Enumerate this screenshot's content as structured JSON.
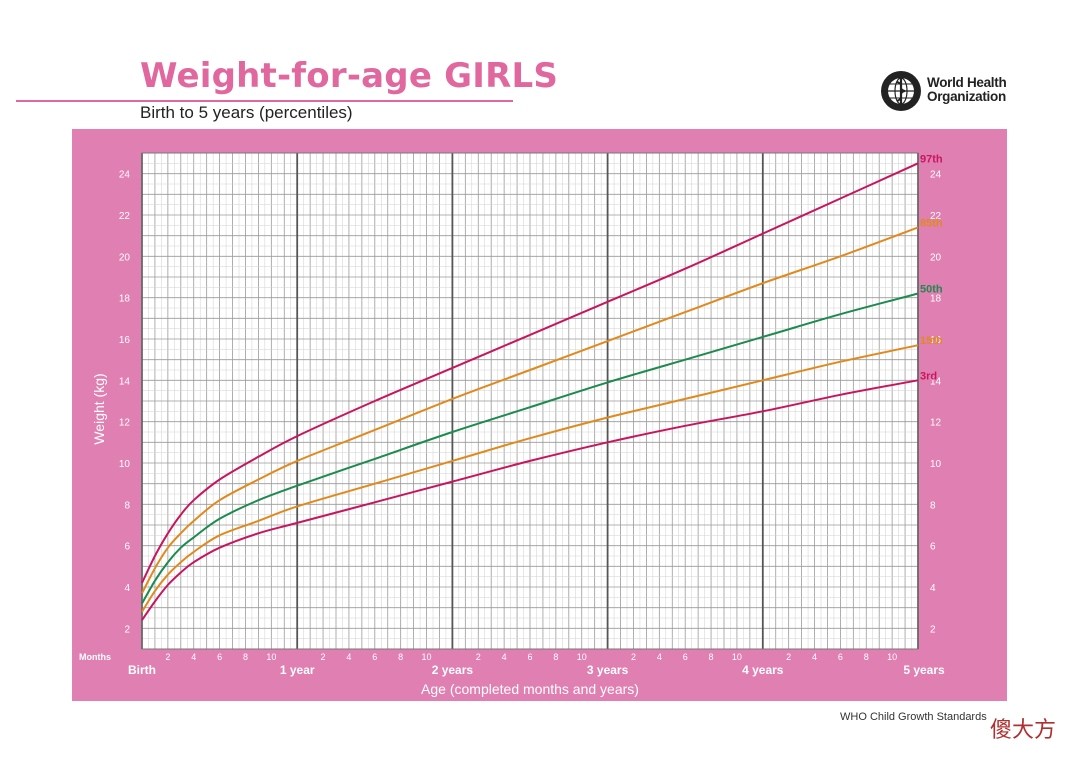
{
  "header": {
    "title": "Weight-for-age GIRLS",
    "subtitle": "Birth to 5 years (percentiles)"
  },
  "logo": {
    "icon": "who-emblem-icon",
    "line1": "World Health",
    "line2": "Organization"
  },
  "footer": {
    "source": "WHO Child Growth Standards",
    "watermark": "傻大方"
  },
  "colors": {
    "panel": "#e07fb2",
    "title": "#e0689f",
    "p97": "#c8155e",
    "p85": "#e08a1e",
    "p50": "#1d8a4e",
    "p15": "#e08a1e",
    "p3": "#c8155e"
  },
  "chart_data": {
    "type": "line",
    "xlabel": "Age (completed months and years)",
    "ylabel": "Weight (kg)",
    "xlim": [
      0,
      60
    ],
    "ylim": [
      1,
      25
    ],
    "grid": true,
    "months_label": "Months",
    "y_ticks": [
      2,
      4,
      6,
      8,
      10,
      12,
      14,
      16,
      18,
      20,
      22,
      24
    ],
    "month_tick_labels": [
      "2",
      "4",
      "6",
      "8",
      "10"
    ],
    "year_labels": [
      {
        "month": 0,
        "label": "Birth"
      },
      {
        "month": 12,
        "label": "1 year"
      },
      {
        "month": 24,
        "label": "2 years"
      },
      {
        "month": 36,
        "label": "3 years"
      },
      {
        "month": 48,
        "label": "4 years"
      },
      {
        "month": 60,
        "label": "5 years"
      }
    ],
    "x": [
      0,
      1,
      2,
      3,
      4,
      6,
      9,
      12,
      18,
      24,
      30,
      36,
      42,
      48,
      54,
      60
    ],
    "series": [
      {
        "name": "97th",
        "color_key": "p97",
        "values": [
          4.2,
          5.5,
          6.6,
          7.5,
          8.2,
          9.2,
          10.3,
          11.3,
          13.0,
          14.6,
          16.2,
          17.8,
          19.4,
          21.1,
          22.8,
          24.5
        ]
      },
      {
        "name": "85th",
        "color_key": "p85",
        "values": [
          3.7,
          4.9,
          5.9,
          6.6,
          7.2,
          8.2,
          9.2,
          10.1,
          11.6,
          13.1,
          14.5,
          15.9,
          17.3,
          18.7,
          20.0,
          21.4
        ]
      },
      {
        "name": "50th",
        "color_key": "p50",
        "values": [
          3.2,
          4.3,
          5.2,
          5.9,
          6.4,
          7.3,
          8.2,
          8.9,
          10.2,
          11.5,
          12.7,
          13.9,
          15.0,
          16.1,
          17.2,
          18.2
        ]
      },
      {
        "name": "15th",
        "color_key": "p15",
        "values": [
          2.8,
          3.8,
          4.6,
          5.2,
          5.7,
          6.5,
          7.2,
          7.9,
          9.0,
          10.1,
          11.2,
          12.2,
          13.1,
          14.0,
          14.9,
          15.7
        ]
      },
      {
        "name": "3rd",
        "color_key": "p3",
        "values": [
          2.4,
          3.3,
          4.1,
          4.7,
          5.2,
          5.9,
          6.6,
          7.1,
          8.1,
          9.1,
          10.1,
          11.0,
          11.8,
          12.5,
          13.3,
          14.0
        ]
      }
    ]
  }
}
